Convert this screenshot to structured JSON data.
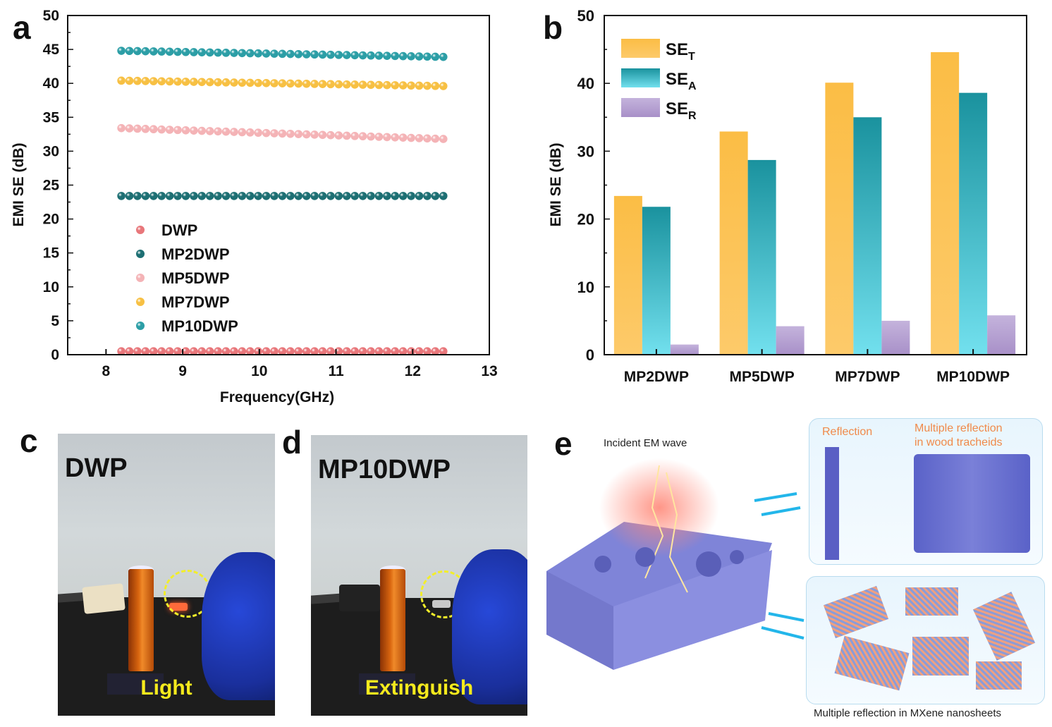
{
  "panels": {
    "a": "a",
    "b": "b",
    "c": "c",
    "d": "d",
    "e": "e"
  },
  "chart_data": [
    {
      "type": "scatter",
      "panel": "a",
      "title": "",
      "xlabel": "Frequency(GHz)",
      "ylabel": "EMI SE (dB)",
      "xlim": [
        7.5,
        13
      ],
      "ylim": [
        0,
        50
      ],
      "xticks": [
        8,
        9,
        10,
        11,
        12,
        13
      ],
      "yticks": [
        0,
        5,
        10,
        15,
        20,
        25,
        30,
        35,
        40,
        45,
        50
      ],
      "x_range": [
        8.2,
        12.4
      ],
      "n_points": 41,
      "legend_position": "center-left",
      "series": [
        {
          "name": "DWP",
          "color": "#e8767a",
          "start": 0.5,
          "end": 0.5
        },
        {
          "name": "MP2DWP",
          "color": "#1d6f73",
          "start": 23.4,
          "end": 23.4
        },
        {
          "name": "MP5DWP",
          "color": "#f4b3b6",
          "start": 33.4,
          "end": 31.8
        },
        {
          "name": "MP7DWP",
          "color": "#f7c043",
          "start": 40.4,
          "end": 39.6
        },
        {
          "name": "MP10DWP",
          "color": "#2c9ea6",
          "start": 44.8,
          "end": 43.9
        }
      ]
    },
    {
      "type": "bar",
      "panel": "b",
      "title": "",
      "xlabel": "",
      "ylabel": "EMI SE (dB)",
      "ylim": [
        0,
        50
      ],
      "yticks": [
        0,
        10,
        20,
        30,
        40,
        50
      ],
      "categories": [
        "MP2DWP",
        "MP5DWP",
        "MP7DWP",
        "MP10DWP"
      ],
      "legend_position": "top-left",
      "series": [
        {
          "name": "SE",
          "sub": "T",
          "color_top": "#fbbd45",
          "color_bottom": "#fdca6a",
          "values": [
            23.4,
            32.9,
            40.1,
            44.6
          ]
        },
        {
          "name": "SE",
          "sub": "A",
          "color_top": "#1a929e",
          "color_bottom": "#72e0ee",
          "values": [
            21.8,
            28.7,
            35.0,
            38.6
          ]
        },
        {
          "name": "SE",
          "sub": "R",
          "color_top": "#c4b3dc",
          "color_bottom": "#a890c8",
          "values": [
            1.5,
            4.2,
            5.0,
            5.8
          ]
        }
      ]
    }
  ],
  "photos": {
    "c": {
      "title": "DWP",
      "caption": "Light"
    },
    "d": {
      "title": "MP10DWP",
      "caption": "Extinguish"
    }
  },
  "schematic": {
    "incident": "Incident EM wave",
    "reflection": "Reflection",
    "multi_wood_1": "Multiple reflection",
    "multi_wood_2": "in wood tracheids",
    "mxene": "Multiple reflection in MXene nanosheets"
  }
}
